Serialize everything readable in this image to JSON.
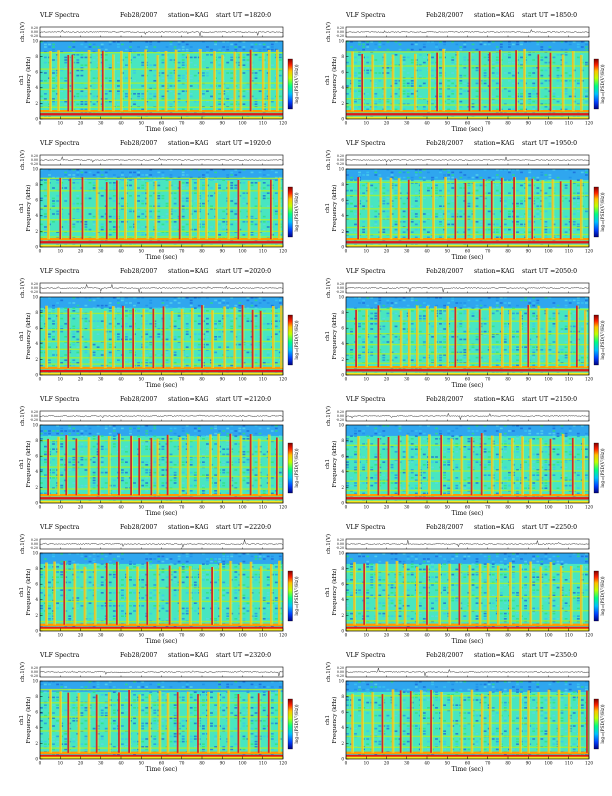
{
  "page": {
    "title": ""
  },
  "chart_data": [
    {
      "type": "heatmap",
      "title": "VLF Spectra",
      "date": "Feb28/2007",
      "station": "station=KAG",
      "start_ut": "start  UT  =1820:0",
      "channel": "ch1",
      "xlabel": "Time  (sec)",
      "xlim": [
        0,
        120
      ],
      "xticks": [
        "0",
        "10",
        "20",
        "30",
        "40",
        "50",
        "60",
        "70",
        "80",
        "90",
        "100",
        "110",
        "120"
      ],
      "ylabel": "Frequency  (kHz)",
      "ylim": [
        0,
        10
      ],
      "yticks": [
        "0",
        "2",
        "4",
        "6",
        "8",
        "10"
      ],
      "top_ylabel": "ch.1(V)",
      "top_yticks": [
        "0.20",
        "0.00",
        "-0.20"
      ],
      "colorbar_label": "log₁₀(PSD(V²/Hz))",
      "colormap": [
        "#000080",
        "#0040ff",
        "#00c0ff",
        "#00ff80",
        "#c0ff00",
        "#ffc000",
        "#ff2000",
        "#800000"
      ],
      "strong_bands_khz": [
        0.6,
        1.0
      ],
      "mid_bands_khz": [
        1.5,
        2.4,
        3.8,
        4.6,
        6.4,
        8.5
      ],
      "sferic_times_sec": [
        5,
        9,
        14,
        16,
        24,
        29,
        31,
        36,
        40,
        44,
        52,
        58,
        62,
        67,
        73,
        79,
        86,
        90,
        96,
        99,
        104,
        110,
        113,
        117
      ]
    },
    {
      "type": "heatmap",
      "title": "VLF Spectra",
      "date": "Feb28/2007",
      "station": "station=KAG",
      "start_ut": "start  UT  =1850:0",
      "channel": "ch1",
      "xlabel": "Time  (sec)",
      "xlim": [
        0,
        120
      ],
      "xticks": [
        "0",
        "10",
        "20",
        "30",
        "40",
        "50",
        "60",
        "70",
        "80",
        "90",
        "100",
        "110",
        "120"
      ],
      "ylabel": "Frequency  (kHz)",
      "ylim": [
        0,
        10
      ],
      "yticks": [
        "0",
        "2",
        "4",
        "6",
        "8",
        "10"
      ],
      "top_ylabel": "ch.1(V)",
      "top_yticks": [
        "0.20",
        "0.00",
        "-0.20"
      ],
      "colorbar_label": "log₁₀(PSD(V²/Hz))",
      "colormap": [
        "#000080",
        "#0040ff",
        "#00c0ff",
        "#00ff80",
        "#c0ff00",
        "#ffc000",
        "#ff2000",
        "#800000"
      ],
      "strong_bands_khz": [
        0.6,
        1.0
      ],
      "mid_bands_khz": [
        1.8,
        2.6,
        4.0,
        5.2,
        6.8,
        8.6
      ],
      "sferic_times_sec": [
        3,
        8,
        13,
        19,
        23,
        27,
        34,
        41,
        45,
        48,
        55,
        61,
        66,
        71,
        76,
        84,
        88,
        95,
        101,
        107,
        112,
        116
      ]
    },
    {
      "type": "heatmap",
      "title": "VLF Spectra",
      "date": "Feb28/2007",
      "station": "station=KAG",
      "start_ut": "start  UT  =1920:0",
      "channel": "ch1",
      "xlabel": "Time  (sec)",
      "xlim": [
        0,
        120
      ],
      "xticks": [
        "0",
        "10",
        "20",
        "30",
        "40",
        "50",
        "60",
        "70",
        "80",
        "90",
        "100",
        "110",
        "120"
      ],
      "ylabel": "Frequency  (kHz)",
      "ylim": [
        0,
        10
      ],
      "yticks": [
        "0",
        "2",
        "4",
        "6",
        "8",
        "10"
      ],
      "top_ylabel": "ch.1(V)",
      "top_yticks": [
        "0.20",
        "0.00",
        "-0.20"
      ],
      "colorbar_label": "log₁₀(PSD(V²/Hz))",
      "colormap": [
        "#000080",
        "#0040ff",
        "#00c0ff",
        "#00ff80",
        "#c0ff00",
        "#ffc000",
        "#ff2000",
        "#800000"
      ],
      "strong_bands_khz": [
        0.6,
        1.0
      ],
      "mid_bands_khz": [
        1.3,
        2.0,
        3.5,
        5.0,
        7.2,
        8.8
      ],
      "sferic_times_sec": [
        4,
        10,
        15,
        21,
        28,
        33,
        38,
        42,
        47,
        53,
        57,
        64,
        69,
        74,
        78,
        82,
        87,
        93,
        98,
        103,
        108,
        114,
        118
      ]
    },
    {
      "type": "heatmap",
      "title": "VLF Spectra",
      "date": "Feb28/2007",
      "station": "station=KAG",
      "start_ut": "start  UT  =1950:0",
      "channel": "ch1",
      "xlabel": "Time  (sec)",
      "xlim": [
        0,
        120
      ],
      "xticks": [
        "0",
        "10",
        "20",
        "30",
        "40",
        "50",
        "60",
        "70",
        "80",
        "90",
        "100",
        "110",
        "120"
      ],
      "ylabel": "Frequency  (kHz)",
      "ylim": [
        0,
        10
      ],
      "yticks": [
        "0",
        "2",
        "4",
        "6",
        "8",
        "10"
      ],
      "top_ylabel": "ch.1(V)",
      "top_yticks": [
        "0.20",
        "0.00",
        "-0.20"
      ],
      "colorbar_label": "log₁₀(PSD(V²/Hz))",
      "colormap": [
        "#000080",
        "#0040ff",
        "#00c0ff",
        "#00ff80",
        "#c0ff00",
        "#ffc000",
        "#ff2000",
        "#800000"
      ],
      "strong_bands_khz": [
        0.6,
        1.0
      ],
      "mid_bands_khz": [
        1.6,
        2.5,
        3.6,
        4.9,
        6.6,
        8.3
      ],
      "sferic_times_sec": [
        6,
        11,
        17,
        22,
        26,
        31,
        37,
        43,
        49,
        54,
        59,
        63,
        68,
        72,
        77,
        83,
        89,
        92,
        97,
        102,
        106,
        111,
        116
      ]
    },
    {
      "type": "heatmap",
      "title": "VLF Spectra",
      "date": "Feb28/2007",
      "station": "station=KAG",
      "start_ut": "start  UT  =2020:0",
      "channel": "ch1",
      "xlabel": "Time  (sec)",
      "xlim": [
        0,
        120
      ],
      "xticks": [
        "0",
        "10",
        "20",
        "30",
        "40",
        "50",
        "60",
        "70",
        "80",
        "90",
        "100",
        "110",
        "120"
      ],
      "ylabel": "Frequency  (kHz)",
      "ylim": [
        0,
        10
      ],
      "yticks": [
        "0",
        "2",
        "4",
        "6",
        "8",
        "10"
      ],
      "top_ylabel": "ch.1(V)",
      "top_yticks": [
        "0.20",
        "0.00",
        "-0.20"
      ],
      "colorbar_label": "log₁₀(PSD(V²/Hz))",
      "colormap": [
        "#000080",
        "#0040ff",
        "#00c0ff",
        "#00ff80",
        "#c0ff00",
        "#ffc000",
        "#ff2000",
        "#800000"
      ],
      "strong_bands_khz": [
        0.5,
        0.9
      ],
      "mid_bands_khz": [
        1.4,
        2.2,
        3.3,
        4.3,
        5.8,
        7.9
      ],
      "sferic_times_sec": [
        3,
        9,
        14,
        20,
        25,
        32,
        36,
        41,
        46,
        51,
        56,
        61,
        65,
        70,
        75,
        80,
        85,
        91,
        96,
        100,
        105,
        109,
        115,
        119
      ]
    },
    {
      "type": "heatmap",
      "title": "VLF Spectra",
      "date": "Feb28/2007",
      "station": "station=KAG",
      "start_ut": "start  UT  =2050:0",
      "channel": "ch1",
      "xlabel": "Time  (sec)",
      "xlim": [
        0,
        120
      ],
      "xticks": [
        "0",
        "10",
        "20",
        "30",
        "40",
        "50",
        "60",
        "70",
        "80",
        "90",
        "100",
        "110",
        "120"
      ],
      "ylabel": "Frequency  (kHz)",
      "ylim": [
        0,
        10
      ],
      "yticks": [
        "0",
        "2",
        "4",
        "6",
        "8",
        "10"
      ],
      "top_ylabel": "ch.1(V)",
      "top_yticks": [
        "0.20",
        "0.00",
        "-0.20"
      ],
      "colorbar_label": "log₁₀(PSD(V²/Hz))",
      "colormap": [
        "#000080",
        "#0040ff",
        "#00c0ff",
        "#00ff80",
        "#c0ff00",
        "#ffc000",
        "#ff2000",
        "#800000"
      ],
      "strong_bands_khz": [
        0.6,
        1.0
      ],
      "mid_bands_khz": [
        1.5,
        2.7,
        3.9,
        5.3,
        6.9,
        8.4
      ],
      "sferic_times_sec": [
        5,
        10,
        16,
        22,
        27,
        31,
        35,
        40,
        44,
        50,
        54,
        60,
        66,
        71,
        77,
        81,
        86,
        90,
        95,
        99,
        104,
        110,
        114,
        118
      ]
    },
    {
      "type": "heatmap",
      "title": "VLF Spectra",
      "date": "Feb28/2007",
      "station": "station=KAG",
      "start_ut": "start  UT  =2120:0",
      "channel": "ch1",
      "xlabel": "Time  (sec)",
      "xlim": [
        0,
        120
      ],
      "xticks": [
        "0",
        "10",
        "20",
        "30",
        "40",
        "50",
        "60",
        "70",
        "80",
        "90",
        "100",
        "110",
        "120"
      ],
      "ylabel": "Frequency  (kHz)",
      "ylim": [
        0,
        10
      ],
      "yticks": [
        "0",
        "2",
        "4",
        "6",
        "8",
        "10"
      ],
      "top_ylabel": "ch.1(V)",
      "top_yticks": [
        "0.20",
        "0.00",
        "-0.20"
      ],
      "colorbar_label": "log₁₀(PSD(V²/Hz))",
      "colormap": [
        "#000080",
        "#0040ff",
        "#00c0ff",
        "#00ff80",
        "#c0ff00",
        "#ffc000",
        "#ff2000",
        "#800000"
      ],
      "strong_bands_khz": [
        0.6,
        1.0
      ],
      "mid_bands_khz": [
        1.8,
        3.4,
        4.6,
        6.0,
        8.0
      ],
      "sferic_times_sec": [
        4,
        9,
        13,
        18,
        24,
        29,
        34,
        39,
        45,
        49,
        55,
        58,
        63,
        69,
        73,
        78,
        84,
        88,
        94,
        99,
        104,
        108,
        113,
        117
      ]
    },
    {
      "type": "heatmap",
      "title": "VLF Spectra",
      "date": "Feb28/2007",
      "station": "station=KAG",
      "start_ut": "start  UT  =2150:0",
      "channel": "ch1",
      "xlabel": "Time  (sec)",
      "xlim": [
        0,
        120
      ],
      "xticks": [
        "0",
        "10",
        "20",
        "30",
        "40",
        "50",
        "60",
        "70",
        "80",
        "90",
        "100",
        "110",
        "120"
      ],
      "ylabel": "Frequency  (kHz)",
      "ylim": [
        0,
        10
      ],
      "yticks": [
        "0",
        "2",
        "4",
        "6",
        "8",
        "10"
      ],
      "top_ylabel": "ch.1(V)",
      "top_yticks": [
        "0.20",
        "0.00",
        "-0.20"
      ],
      "colorbar_label": "log₁₀(PSD(V²/Hz))",
      "colormap": [
        "#000080",
        "#0040ff",
        "#00c0ff",
        "#00ff80",
        "#c0ff00",
        "#ffc000",
        "#ff2000",
        "#800000"
      ],
      "strong_bands_khz": [
        0.6,
        1.0
      ],
      "mid_bands_khz": [
        1.6,
        2.8,
        4.1,
        5.6,
        7.4
      ],
      "sferic_times_sec": [
        6,
        11,
        16,
        21,
        26,
        30,
        36,
        41,
        47,
        52,
        57,
        62,
        67,
        72,
        76,
        82,
        87,
        91,
        96,
        101,
        107,
        112,
        117
      ]
    },
    {
      "type": "heatmap",
      "title": "VLF Spectra",
      "date": "Feb28/2007",
      "station": "station=KAG",
      "start_ut": "start  UT  =2220:0",
      "channel": "ch1",
      "xlabel": "Time  (sec)",
      "xlim": [
        0,
        120
      ],
      "xticks": [
        "0",
        "10",
        "20",
        "30",
        "40",
        "50",
        "60",
        "70",
        "80",
        "90",
        "100",
        "110",
        "120"
      ],
      "ylabel": "Frequency  (kHz)",
      "ylim": [
        0,
        10
      ],
      "yticks": [
        "0",
        "2",
        "4",
        "6",
        "8",
        "10"
      ],
      "top_ylabel": "ch.1(V)",
      "top_yticks": [
        "0.20",
        "0.00",
        "-0.20"
      ],
      "colorbar_label": "log₁₀(PSD(V²/Hz))",
      "colormap": [
        "#000080",
        "#0040ff",
        "#00c0ff",
        "#00ff80",
        "#c0ff00",
        "#ffc000",
        "#ff2000",
        "#800000"
      ],
      "strong_bands_khz": [
        0.4,
        0.8
      ],
      "mid_bands_khz": [
        1.2,
        3.8,
        5.5,
        7.8
      ],
      "sferic_times_sec": [
        3,
        7,
        12,
        17,
        22,
        27,
        33,
        38,
        43,
        48,
        53,
        58,
        64,
        69,
        74,
        79,
        85,
        89,
        94,
        99,
        104,
        109,
        114,
        118
      ]
    },
    {
      "type": "heatmap",
      "title": "VLF Spectra",
      "date": "Feb28/2007",
      "station": "station=KAG",
      "start_ut": "start  UT  =2250:0",
      "channel": "ch1",
      "xlabel": "Time  (sec)",
      "xlim": [
        0,
        120
      ],
      "xticks": [
        "0",
        "10",
        "20",
        "30",
        "40",
        "50",
        "60",
        "70",
        "80",
        "90",
        "100",
        "110",
        "120"
      ],
      "ylabel": "Frequency  (kHz)",
      "ylim": [
        0,
        10
      ],
      "yticks": [
        "0",
        "2",
        "4",
        "6",
        "8",
        "10"
      ],
      "top_ylabel": "ch.1(V)",
      "top_yticks": [
        "0.20",
        "0.00",
        "-0.20"
      ],
      "colorbar_label": "log₁₀(PSD(V²/Hz))",
      "colormap": [
        "#000080",
        "#0040ff",
        "#00c0ff",
        "#00ff80",
        "#c0ff00",
        "#ffc000",
        "#ff2000",
        "#800000"
      ],
      "strong_bands_khz": [
        0.4,
        0.8
      ],
      "mid_bands_khz": [
        1.3,
        2.6,
        4.4,
        6.1,
        7.6
      ],
      "sferic_times_sec": [
        4,
        9,
        15,
        20,
        25,
        29,
        35,
        40,
        46,
        51,
        56,
        61,
        66,
        70,
        75,
        81,
        86,
        91,
        96,
        101,
        106,
        111,
        116
      ]
    },
    {
      "type": "heatmap",
      "title": "VLF Spectra",
      "date": "Feb28/2007",
      "station": "station=KAG",
      "start_ut": "start  UT  =2320:0",
      "channel": "ch1",
      "xlabel": "Time  (sec)",
      "xlim": [
        0,
        120
      ],
      "xticks": [
        "0",
        "10",
        "20",
        "30",
        "40",
        "50",
        "60",
        "70",
        "80",
        "90",
        "100",
        "110",
        "120"
      ],
      "ylabel": "Frequency  (kHz)",
      "ylim": [
        0,
        10
      ],
      "yticks": [
        "0",
        "2",
        "4",
        "6",
        "8",
        "10"
      ],
      "top_ylabel": "ch.1(V)",
      "top_yticks": [
        "0.20",
        "0.00",
        "-0.20"
      ],
      "colorbar_label": "log₁₀(PSD(V²/Hz))",
      "colormap": [
        "#000080",
        "#0040ff",
        "#00c0ff",
        "#00ff80",
        "#c0ff00",
        "#ffc000",
        "#ff2000",
        "#800000"
      ],
      "strong_bands_khz": [
        0.4,
        0.8
      ],
      "mid_bands_khz": [
        1.4,
        3.6,
        5.4,
        7.2,
        8.9
      ],
      "sferic_times_sec": [
        5,
        10,
        14,
        19,
        24,
        28,
        34,
        39,
        44,
        49,
        54,
        59,
        63,
        68,
        73,
        78,
        83,
        88,
        93,
        98,
        103,
        108,
        113,
        118
      ]
    },
    {
      "type": "heatmap",
      "title": "VLF Spectra",
      "date": "Feb28/2007",
      "station": "station=KAG",
      "start_ut": "start  UT  =2350:0",
      "channel": "ch1",
      "xlabel": "Time  (sec)",
      "xlim": [
        0,
        120
      ],
      "xticks": [
        "0",
        "10",
        "20",
        "30",
        "40",
        "50",
        "60",
        "70",
        "80",
        "90",
        "100",
        "110",
        "120"
      ],
      "ylabel": "Frequency  (kHz)",
      "ylim": [
        0,
        10
      ],
      "yticks": [
        "0",
        "2",
        "4",
        "6",
        "8",
        "10"
      ],
      "top_ylabel": "ch.1(V)",
      "top_yticks": [
        "0.20",
        "0.00",
        "-0.20"
      ],
      "colorbar_label": "log₁₀(PSD(V²/Hz))",
      "colormap": [
        "#000080",
        "#0040ff",
        "#00c0ff",
        "#00ff80",
        "#c0ff00",
        "#ffc000",
        "#ff2000",
        "#800000"
      ],
      "strong_bands_khz": [
        0.4,
        0.8
      ],
      "mid_bands_khz": [
        1.5,
        2.9,
        4.6,
        6.3,
        8.1
      ],
      "sferic_times_sec": [
        3,
        8,
        13,
        18,
        23,
        27,
        32,
        37,
        42,
        47,
        52,
        57,
        62,
        67,
        71,
        76,
        81,
        86,
        90,
        95,
        100,
        105,
        110,
        115,
        119
      ]
    }
  ]
}
